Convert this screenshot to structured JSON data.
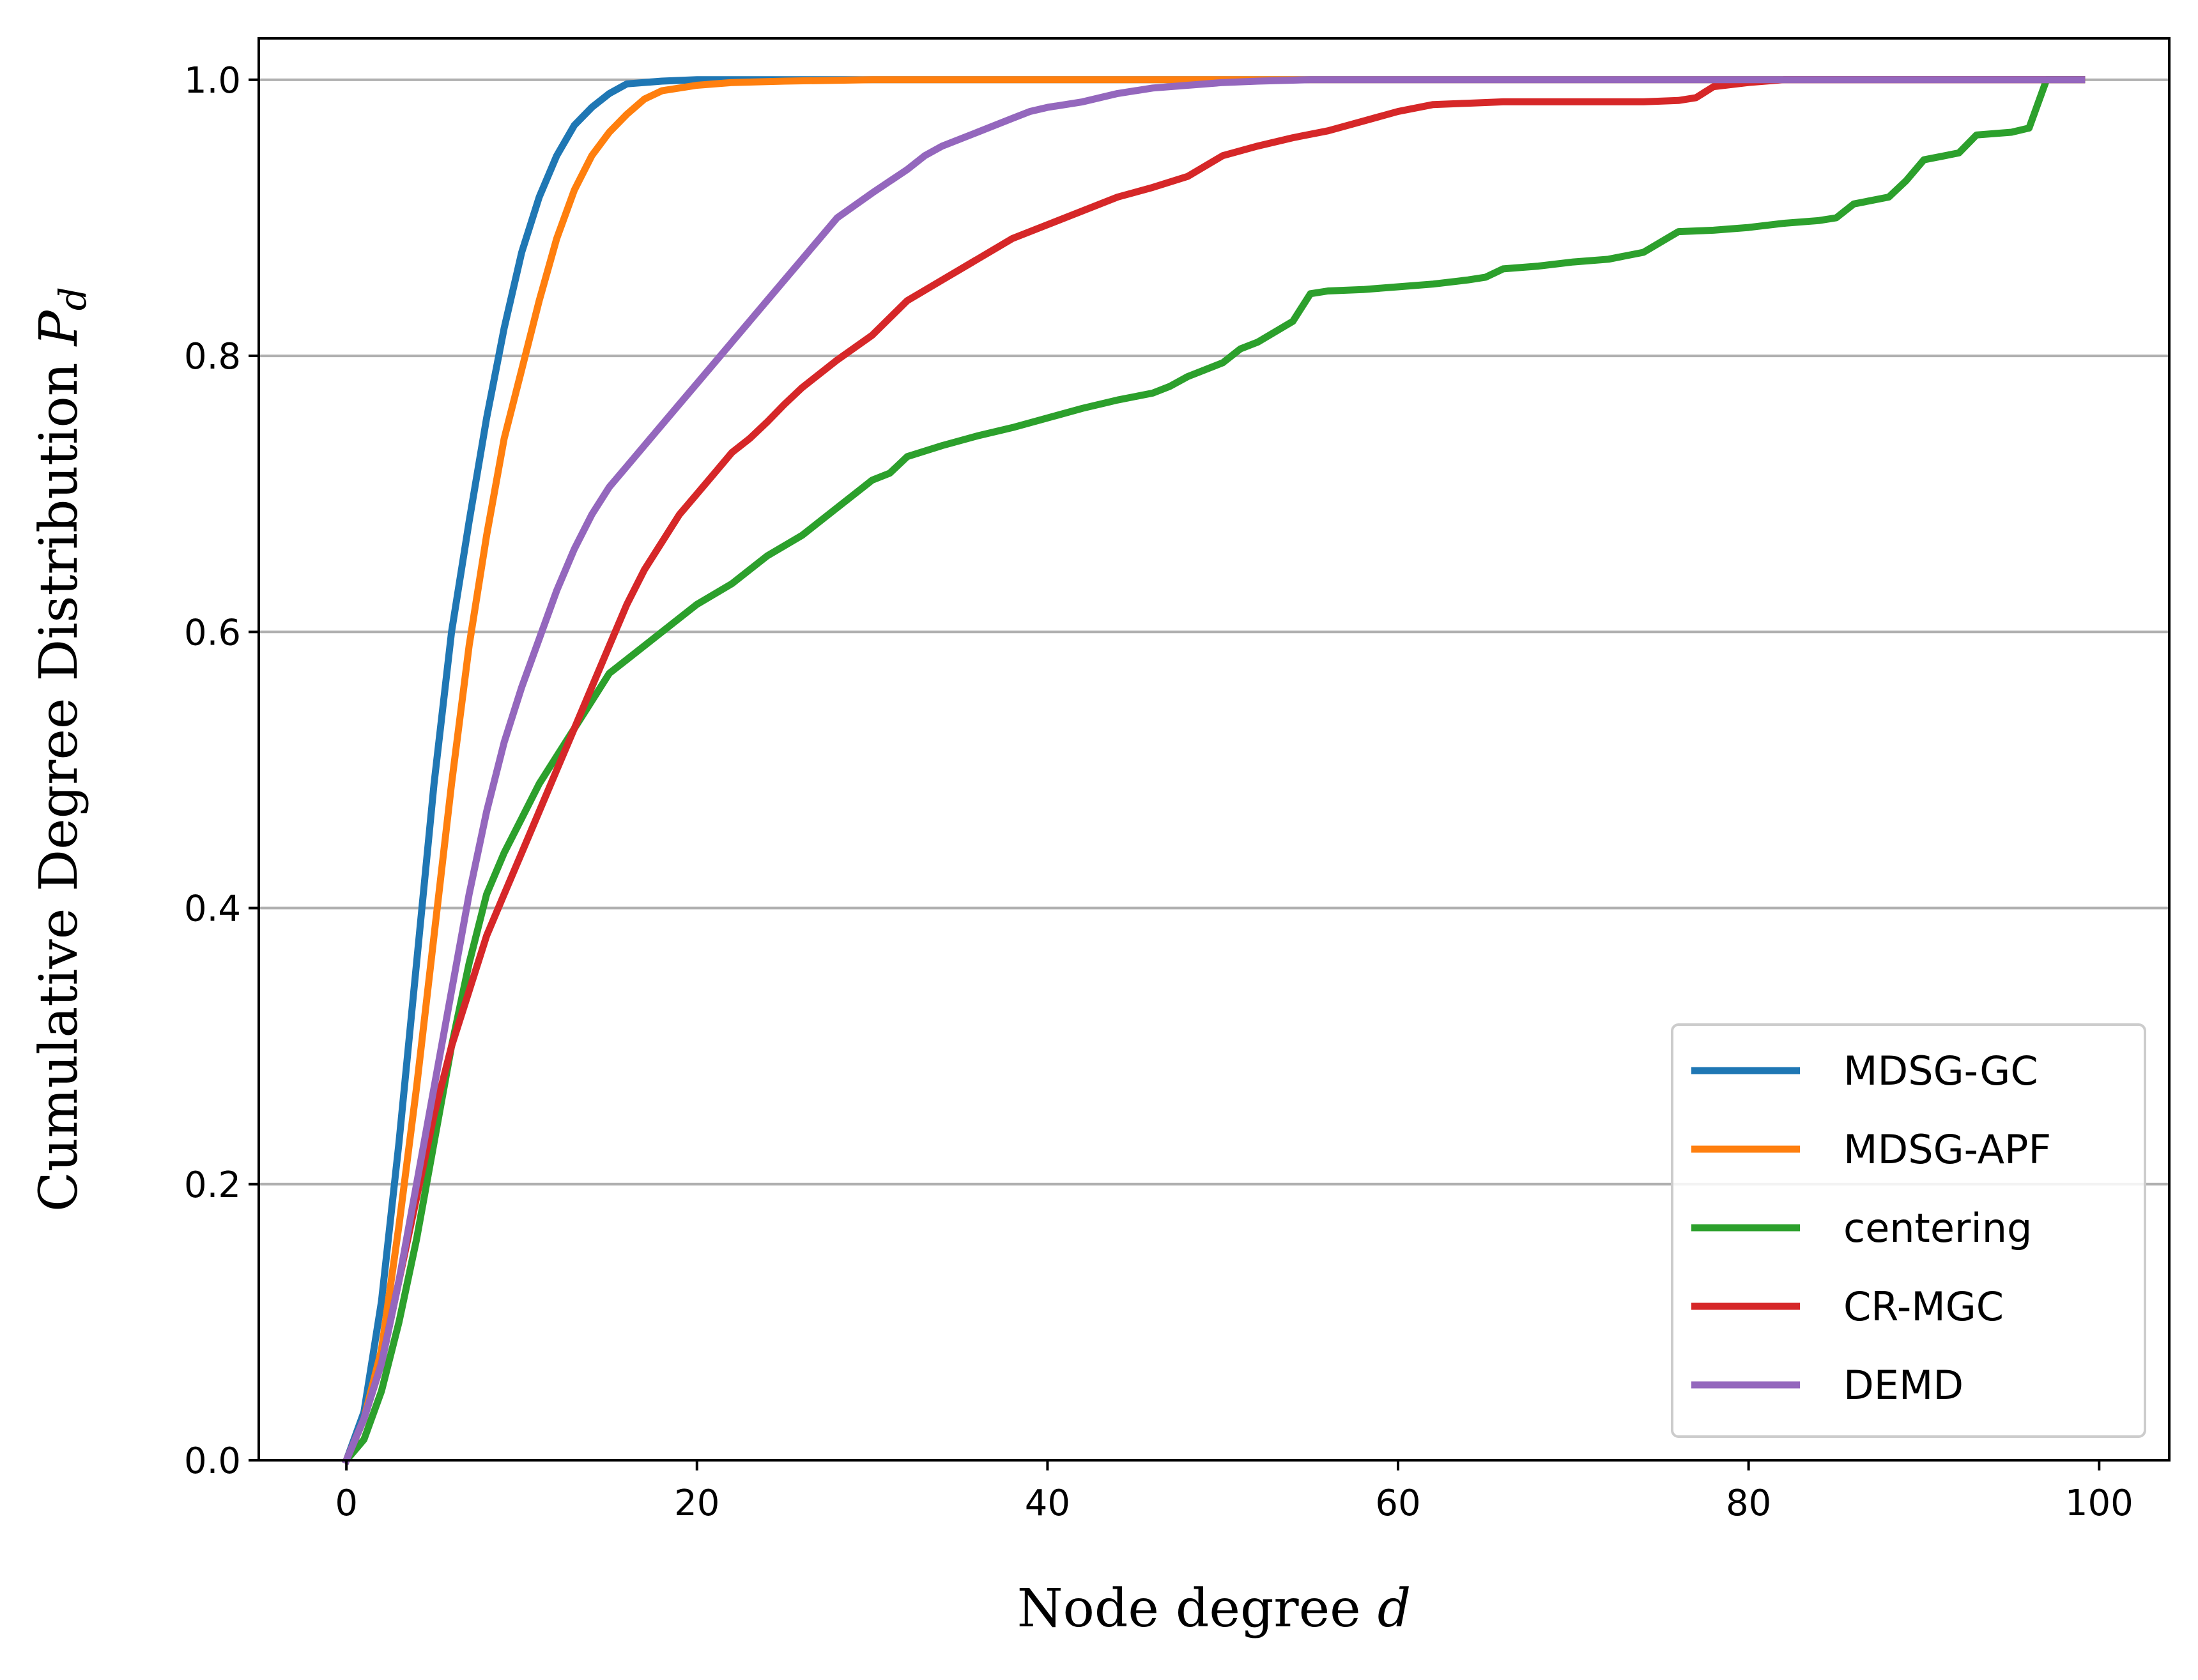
{
  "chart_data": {
    "type": "line",
    "title": "",
    "xlabel": "Node degree",
    "xlabel_var": "d",
    "ylabel": "Cumulative Degree Distribution",
    "ylabel_var": "P",
    "ylabel_sub": "d",
    "xlim": [
      -5,
      104
    ],
    "ylim": [
      0,
      1.03
    ],
    "xticks": [
      0,
      20,
      40,
      60,
      80,
      100
    ],
    "xtick_labels": [
      "0",
      "20",
      "40",
      "60",
      "80",
      "100"
    ],
    "yticks": [
      0,
      0.2,
      0.4,
      0.6,
      0.8,
      1.0
    ],
    "ytick_labels": [
      "0.0",
      "0.2",
      "0.4",
      "0.6",
      "0.8",
      "1.0"
    ],
    "grid": "horizontal",
    "legend_position": "bottom-right",
    "series": [
      {
        "name": "MDSG-GC",
        "color": "#1f77b4",
        "x": [
          0,
          1,
          2,
          3,
          4,
          5,
          6,
          7,
          8,
          9,
          10,
          11,
          12,
          13,
          14,
          15,
          16,
          18,
          20,
          25,
          30,
          60,
          99
        ],
        "y": [
          0,
          0.035,
          0.115,
          0.23,
          0.36,
          0.49,
          0.6,
          0.68,
          0.755,
          0.82,
          0.875,
          0.915,
          0.945,
          0.967,
          0.98,
          0.99,
          0.997,
          0.999,
          1.0,
          1.0,
          1.0,
          1.0,
          1.0
        ]
      },
      {
        "name": "MDSG-APF",
        "color": "#ff7f0e",
        "x": [
          0,
          1,
          2,
          3,
          4,
          5,
          6,
          7,
          8,
          9,
          10,
          11,
          12,
          13,
          14,
          15,
          16,
          17,
          18,
          20,
          22,
          25,
          30,
          50,
          99
        ],
        "y": [
          0,
          0.03,
          0.08,
          0.17,
          0.27,
          0.38,
          0.49,
          0.59,
          0.67,
          0.74,
          0.79,
          0.84,
          0.885,
          0.92,
          0.945,
          0.962,
          0.975,
          0.986,
          0.992,
          0.996,
          0.998,
          0.999,
          1.0,
          1.0,
          1.0
        ]
      },
      {
        "name": "centering",
        "color": "#2ca02c",
        "x": [
          0,
          1,
          2,
          3,
          4,
          5,
          6,
          7,
          8,
          9,
          10,
          11,
          12,
          13,
          14,
          15,
          16,
          18,
          20,
          22,
          24,
          26,
          28,
          29,
          30,
          31,
          32,
          34,
          36,
          38,
          40,
          42,
          44,
          46,
          47,
          48,
          50,
          51,
          52,
          54,
          55,
          56,
          58,
          60,
          62,
          64,
          65,
          66,
          68,
          70,
          72,
          74,
          76,
          78,
          80,
          82,
          84,
          85,
          86,
          88,
          89,
          90,
          92,
          93,
          95,
          96,
          97,
          99
        ],
        "y": [
          0,
          0.015,
          0.05,
          0.1,
          0.16,
          0.23,
          0.3,
          0.36,
          0.41,
          0.44,
          0.465,
          0.49,
          0.51,
          0.53,
          0.55,
          0.57,
          0.58,
          0.6,
          0.62,
          0.635,
          0.655,
          0.67,
          0.69,
          0.7,
          0.71,
          0.715,
          0.727,
          0.735,
          0.742,
          0.748,
          0.755,
          0.762,
          0.768,
          0.773,
          0.778,
          0.785,
          0.795,
          0.805,
          0.81,
          0.825,
          0.845,
          0.847,
          0.848,
          0.85,
          0.852,
          0.855,
          0.857,
          0.863,
          0.865,
          0.868,
          0.87,
          0.875,
          0.89,
          0.891,
          0.893,
          0.896,
          0.898,
          0.9,
          0.91,
          0.915,
          0.927,
          0.942,
          0.947,
          0.96,
          0.962,
          0.965,
          1.0,
          1.0
        ]
      },
      {
        "name": "CR-MGC",
        "color": "#d62728",
        "x": [
          0,
          1,
          2,
          3,
          4,
          5,
          6,
          7,
          8,
          9,
          10,
          11,
          12,
          13,
          14,
          15,
          16,
          17,
          18,
          19,
          20,
          21,
          22,
          23,
          24,
          25,
          26,
          27,
          28,
          30,
          32,
          34,
          36,
          38,
          40,
          42,
          44,
          46,
          48,
          50,
          52,
          54,
          56,
          58,
          60,
          62,
          64,
          66,
          68,
          70,
          72,
          74,
          76,
          77,
          78,
          80,
          82,
          84,
          99
        ],
        "y": [
          0,
          0.03,
          0.07,
          0.13,
          0.19,
          0.25,
          0.3,
          0.34,
          0.38,
          0.41,
          0.44,
          0.47,
          0.5,
          0.53,
          0.56,
          0.59,
          0.62,
          0.645,
          0.665,
          0.685,
          0.7,
          0.715,
          0.73,
          0.74,
          0.752,
          0.765,
          0.777,
          0.787,
          0.797,
          0.815,
          0.84,
          0.855,
          0.87,
          0.885,
          0.895,
          0.905,
          0.915,
          0.922,
          0.93,
          0.945,
          0.952,
          0.958,
          0.963,
          0.97,
          0.977,
          0.982,
          0.983,
          0.984,
          0.984,
          0.984,
          0.984,
          0.984,
          0.985,
          0.987,
          0.995,
          0.998,
          1.0,
          1.0,
          1.0
        ]
      },
      {
        "name": "DEMD",
        "color": "#9467bd",
        "x": [
          0,
          1,
          2,
          3,
          4,
          5,
          6,
          7,
          8,
          9,
          10,
          11,
          12,
          13,
          14,
          15,
          16,
          17,
          18,
          19,
          20,
          21,
          22,
          23,
          24,
          25,
          26,
          27,
          28,
          30,
          32,
          33,
          34,
          36,
          38,
          39,
          40,
          42,
          44,
          45,
          46,
          48,
          50,
          52,
          55,
          60,
          70,
          99
        ],
        "y": [
          0,
          0.03,
          0.07,
          0.13,
          0.2,
          0.27,
          0.34,
          0.41,
          0.47,
          0.52,
          0.56,
          0.595,
          0.63,
          0.66,
          0.685,
          0.705,
          0.72,
          0.735,
          0.75,
          0.765,
          0.78,
          0.795,
          0.81,
          0.825,
          0.84,
          0.855,
          0.87,
          0.885,
          0.9,
          0.918,
          0.935,
          0.945,
          0.952,
          0.962,
          0.972,
          0.977,
          0.98,
          0.984,
          0.99,
          0.992,
          0.994,
          0.996,
          0.998,
          0.999,
          1.0,
          1.0,
          1.0,
          1.0
        ]
      }
    ]
  }
}
